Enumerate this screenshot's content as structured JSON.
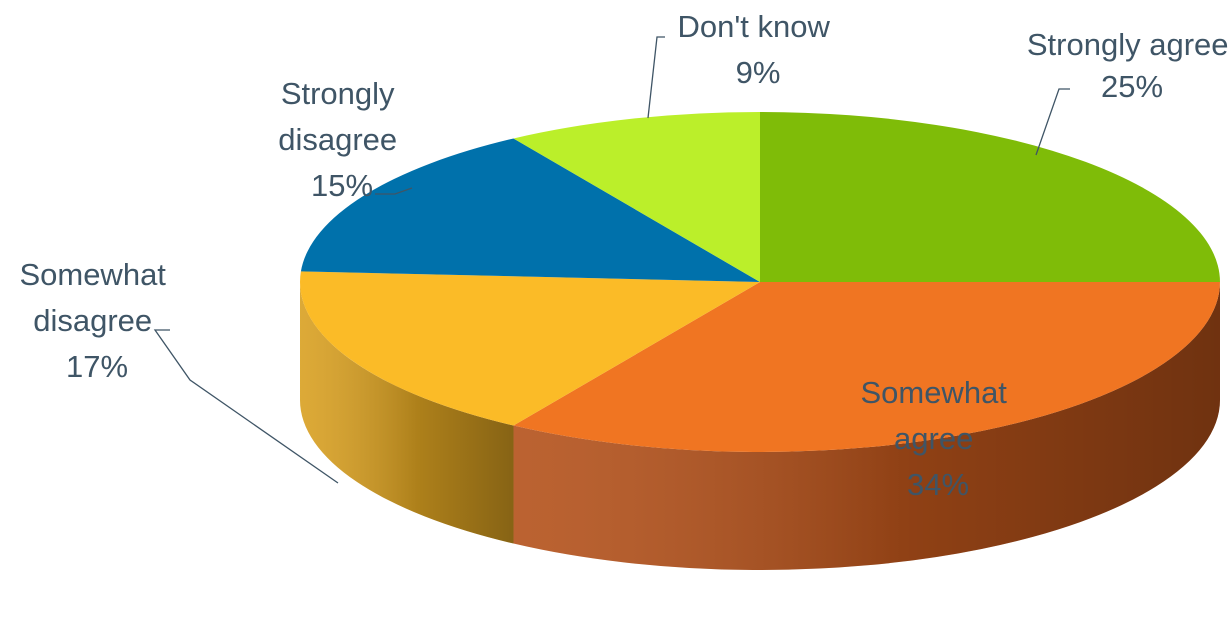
{
  "chart_data": {
    "type": "pie",
    "style": "3d",
    "start_angle_deg": 90,
    "direction": "clockwise",
    "series": [
      {
        "values": [
          {
            "label": "Strongly agree",
            "value": 25,
            "value_label": "25%",
            "color": "#7fbc08",
            "side_color": "#5d8a06"
          },
          {
            "label": "Somewhat agree",
            "value": 34,
            "value_label": "34%",
            "color": "#f07522",
            "side_color": "#b4511a"
          },
          {
            "label": "Somewhat disagree",
            "value": 17,
            "value_label": "17%",
            "color": "#fbbb27",
            "side_color": "#d9a021"
          },
          {
            "label": "Strongly disagree",
            "value": 15,
            "value_label": "15%",
            "color": "#0071ab",
            "side_color": "#005482"
          },
          {
            "label": "Don't know",
            "value": 9,
            "value_label": "9%",
            "color": "#bbef2a",
            "side_color": "#8fbb1c"
          }
        ]
      }
    ],
    "labels": [
      {
        "lines": [
          "Don't know",
          "9%"
        ]
      },
      {
        "lines": [
          "Strongly agree",
          "25%"
        ]
      },
      {
        "lines": [
          "Strongly",
          "disagree",
          "15%"
        ]
      },
      {
        "lines": [
          "Somewhat",
          "disagree",
          "17%"
        ]
      },
      {
        "lines": [
          "Somewhat",
          "agree",
          "34%"
        ]
      }
    ]
  }
}
